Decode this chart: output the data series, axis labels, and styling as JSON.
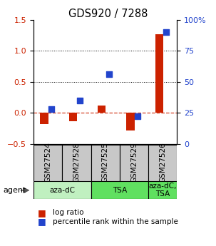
{
  "title": "GDS920 / 7288",
  "samples": [
    "GSM27524",
    "GSM27528",
    "GSM27525",
    "GSM27529",
    "GSM27526"
  ],
  "log_ratios": [
    -0.18,
    -0.14,
    0.12,
    -0.28,
    1.27
  ],
  "percentile_ranks": [
    28,
    35,
    56,
    22,
    90
  ],
  "agent_groups": [
    {
      "label": "aza-dC",
      "start": 0,
      "end": 2,
      "color": "#c0f0c0"
    },
    {
      "label": "TSA",
      "start": 2,
      "end": 4,
      "color": "#60e060"
    },
    {
      "label": "aza-dC,\nTSA",
      "start": 4,
      "end": 5,
      "color": "#60e060"
    }
  ],
  "bar_color_red": "#cc2200",
  "bar_color_blue": "#2244cc",
  "left_ylim": [
    -0.5,
    1.5
  ],
  "right_ylim": [
    0,
    100
  ],
  "left_yticks": [
    -0.5,
    0,
    0.5,
    1.0,
    1.5
  ],
  "right_yticks": [
    0,
    25,
    50,
    75,
    100
  ],
  "right_yticklabels": [
    "0",
    "25",
    "50",
    "75",
    "100%"
  ],
  "bar_width": 0.28,
  "square_size": 32,
  "legend_labels": [
    "log ratio",
    "percentile rank within the sample"
  ],
  "agent_label": "agent",
  "sample_bg": "#c8c8c8",
  "fig_bg": "#ffffff"
}
